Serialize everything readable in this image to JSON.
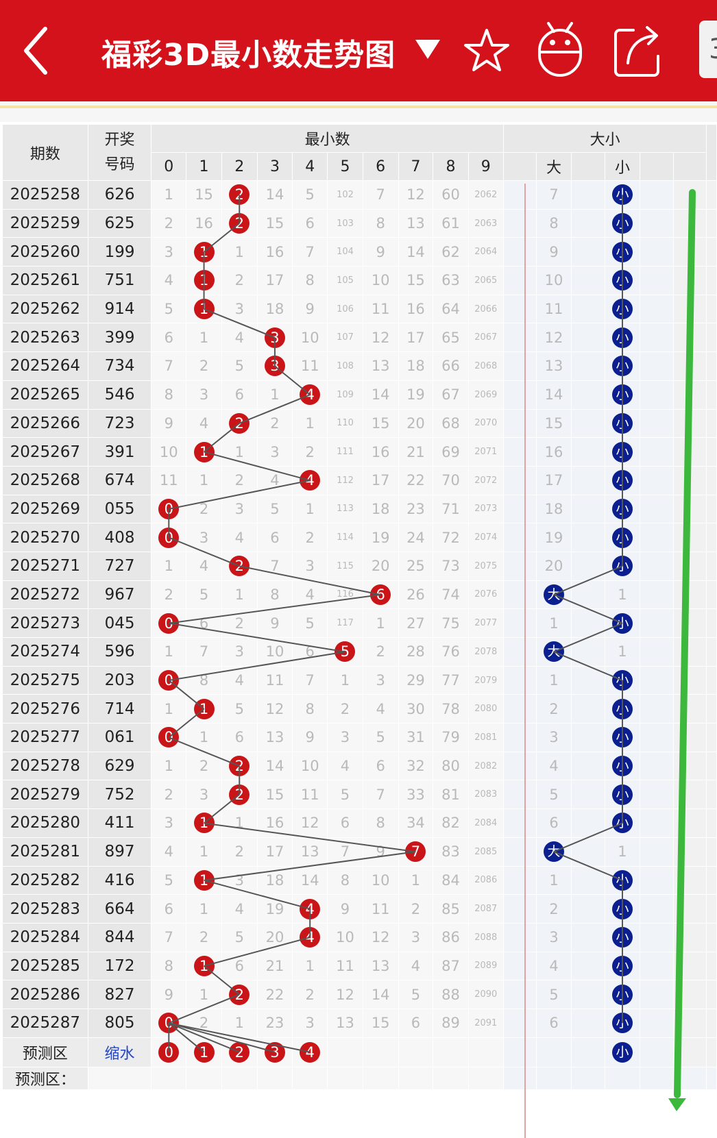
{
  "header": {
    "back_icon": "back-arrow-icon",
    "title": "福彩3D最小数走势图",
    "dropdown_icon": "triangle-down-icon",
    "favorite_icon": "star-icon",
    "android_icon": "android-icon",
    "share_icon": "share-icon",
    "cut_text": "3"
  },
  "colors": {
    "header_bg": "#d3121b",
    "red_ball": "#c91418",
    "blue_ball": "#0b1f8f",
    "trend_arrow": "#3cb83c",
    "connector": "#555555"
  },
  "table": {
    "headers": {
      "period": "期数",
      "number_line1": "开奖",
      "number_line2": "号码",
      "min_group": "最小数",
      "digits": [
        "0",
        "1",
        "2",
        "3",
        "4",
        "5",
        "6",
        "7",
        "8",
        "9"
      ],
      "bs_group": "大小",
      "big": "大",
      "small": "小"
    },
    "rows": [
      {
        "period": "2025258",
        "number": "626",
        "cells": [
          "1",
          "15",
          "2",
          "14",
          "5",
          "102",
          "7",
          "12",
          "60",
          "2062"
        ],
        "hit": 2,
        "bs": [
          "7",
          "小"
        ],
        "bs_hit": 1
      },
      {
        "period": "2025259",
        "number": "625",
        "cells": [
          "2",
          "16",
          "2",
          "15",
          "6",
          "103",
          "8",
          "13",
          "61",
          "2063"
        ],
        "hit": 2,
        "bs": [
          "8",
          "小"
        ],
        "bs_hit": 1
      },
      {
        "period": "2025260",
        "number": "199",
        "cells": [
          "3",
          "1",
          "1",
          "16",
          "7",
          "104",
          "9",
          "14",
          "62",
          "2064"
        ],
        "hit": 1,
        "bs": [
          "9",
          "小"
        ],
        "bs_hit": 1
      },
      {
        "period": "2025261",
        "number": "751",
        "cells": [
          "4",
          "1",
          "2",
          "17",
          "8",
          "105",
          "10",
          "15",
          "63",
          "2065"
        ],
        "hit": 1,
        "bs": [
          "10",
          "小"
        ],
        "bs_hit": 1
      },
      {
        "period": "2025262",
        "number": "914",
        "cells": [
          "5",
          "1",
          "3",
          "18",
          "9",
          "106",
          "11",
          "16",
          "64",
          "2066"
        ],
        "hit": 1,
        "bs": [
          "11",
          "小"
        ],
        "bs_hit": 1
      },
      {
        "period": "2025263",
        "number": "399",
        "cells": [
          "6",
          "1",
          "4",
          "3",
          "10",
          "107",
          "12",
          "17",
          "65",
          "2067"
        ],
        "hit": 3,
        "bs": [
          "12",
          "小"
        ],
        "bs_hit": 1
      },
      {
        "period": "2025264",
        "number": "734",
        "cells": [
          "7",
          "2",
          "5",
          "3",
          "11",
          "108",
          "13",
          "18",
          "66",
          "2068"
        ],
        "hit": 3,
        "bs": [
          "13",
          "小"
        ],
        "bs_hit": 1
      },
      {
        "period": "2025265",
        "number": "546",
        "cells": [
          "8",
          "3",
          "6",
          "1",
          "4",
          "109",
          "14",
          "19",
          "67",
          "2069"
        ],
        "hit": 4,
        "bs": [
          "14",
          "小"
        ],
        "bs_hit": 1
      },
      {
        "period": "2025266",
        "number": "723",
        "cells": [
          "9",
          "4",
          "2",
          "2",
          "1",
          "110",
          "15",
          "20",
          "68",
          "2070"
        ],
        "hit": 2,
        "bs": [
          "15",
          "小"
        ],
        "bs_hit": 1
      },
      {
        "period": "2025267",
        "number": "391",
        "cells": [
          "10",
          "1",
          "1",
          "3",
          "2",
          "111",
          "16",
          "21",
          "69",
          "2071"
        ],
        "hit": 1,
        "bs": [
          "16",
          "小"
        ],
        "bs_hit": 1
      },
      {
        "period": "2025268",
        "number": "674",
        "cells": [
          "11",
          "1",
          "2",
          "4",
          "4",
          "112",
          "17",
          "22",
          "70",
          "2072"
        ],
        "hit": 4,
        "bs": [
          "17",
          "小"
        ],
        "bs_hit": 1
      },
      {
        "period": "2025269",
        "number": "055",
        "cells": [
          "0",
          "2",
          "3",
          "5",
          "1",
          "113",
          "18",
          "23",
          "71",
          "2073"
        ],
        "hit": 0,
        "bs": [
          "18",
          "小"
        ],
        "bs_hit": 1
      },
      {
        "period": "2025270",
        "number": "408",
        "cells": [
          "0",
          "3",
          "4",
          "6",
          "2",
          "114",
          "19",
          "24",
          "72",
          "2074"
        ],
        "hit": 0,
        "bs": [
          "19",
          "小"
        ],
        "bs_hit": 1
      },
      {
        "period": "2025271",
        "number": "727",
        "cells": [
          "1",
          "4",
          "2",
          "7",
          "3",
          "115",
          "20",
          "25",
          "73",
          "2075"
        ],
        "hit": 2,
        "bs": [
          "20",
          "小"
        ],
        "bs_hit": 1
      },
      {
        "period": "2025272",
        "number": "967",
        "cells": [
          "2",
          "5",
          "1",
          "8",
          "4",
          "116",
          "6",
          "26",
          "74",
          "2076"
        ],
        "hit": 6,
        "bs": [
          "大",
          "1"
        ],
        "bs_hit": 0
      },
      {
        "period": "2025273",
        "number": "045",
        "cells": [
          "0",
          "6",
          "2",
          "9",
          "5",
          "117",
          "1",
          "27",
          "75",
          "2077"
        ],
        "hit": 0,
        "bs": [
          "1",
          "小"
        ],
        "bs_hit": 1
      },
      {
        "period": "2025274",
        "number": "596",
        "cells": [
          "1",
          "7",
          "3",
          "10",
          "6",
          "5",
          "2",
          "28",
          "76",
          "2078"
        ],
        "hit": 5,
        "bs": [
          "大",
          "1"
        ],
        "bs_hit": 0
      },
      {
        "period": "2025275",
        "number": "203",
        "cells": [
          "0",
          "8",
          "4",
          "11",
          "7",
          "1",
          "3",
          "29",
          "77",
          "2079"
        ],
        "hit": 0,
        "bs": [
          "1",
          "小"
        ],
        "bs_hit": 1
      },
      {
        "period": "2025276",
        "number": "714",
        "cells": [
          "1",
          "1",
          "5",
          "12",
          "8",
          "2",
          "4",
          "30",
          "78",
          "2080"
        ],
        "hit": 1,
        "bs": [
          "2",
          "小"
        ],
        "bs_hit": 1
      },
      {
        "period": "2025277",
        "number": "061",
        "cells": [
          "0",
          "1",
          "6",
          "13",
          "9",
          "3",
          "5",
          "31",
          "79",
          "2081"
        ],
        "hit": 0,
        "bs": [
          "3",
          "小"
        ],
        "bs_hit": 1
      },
      {
        "period": "2025278",
        "number": "629",
        "cells": [
          "1",
          "2",
          "2",
          "14",
          "10",
          "4",
          "6",
          "32",
          "80",
          "2082"
        ],
        "hit": 2,
        "bs": [
          "4",
          "小"
        ],
        "bs_hit": 1
      },
      {
        "period": "2025279",
        "number": "752",
        "cells": [
          "2",
          "3",
          "2",
          "15",
          "11",
          "5",
          "7",
          "33",
          "81",
          "2083"
        ],
        "hit": 2,
        "bs": [
          "5",
          "小"
        ],
        "bs_hit": 1
      },
      {
        "period": "2025280",
        "number": "411",
        "cells": [
          "3",
          "1",
          "1",
          "16",
          "12",
          "6",
          "8",
          "34",
          "82",
          "2084"
        ],
        "hit": 1,
        "bs": [
          "6",
          "小"
        ],
        "bs_hit": 1
      },
      {
        "period": "2025281",
        "number": "897",
        "cells": [
          "4",
          "1",
          "2",
          "17",
          "13",
          "7",
          "9",
          "7",
          "83",
          "2085"
        ],
        "hit": 7,
        "bs": [
          "大",
          "1"
        ],
        "bs_hit": 0
      },
      {
        "period": "2025282",
        "number": "416",
        "cells": [
          "5",
          "1",
          "3",
          "18",
          "14",
          "8",
          "10",
          "1",
          "84",
          "2086"
        ],
        "hit": 1,
        "bs": [
          "1",
          "小"
        ],
        "bs_hit": 1
      },
      {
        "period": "2025283",
        "number": "664",
        "cells": [
          "6",
          "1",
          "4",
          "19",
          "4",
          "9",
          "11",
          "2",
          "85",
          "2087"
        ],
        "hit": 4,
        "bs": [
          "2",
          "小"
        ],
        "bs_hit": 1
      },
      {
        "period": "2025284",
        "number": "844",
        "cells": [
          "7",
          "2",
          "5",
          "20",
          "4",
          "10",
          "12",
          "3",
          "86",
          "2088"
        ],
        "hit": 4,
        "bs": [
          "3",
          "小"
        ],
        "bs_hit": 1
      },
      {
        "period": "2025285",
        "number": "172",
        "cells": [
          "8",
          "1",
          "6",
          "21",
          "1",
          "11",
          "13",
          "4",
          "87",
          "2089"
        ],
        "hit": 1,
        "bs": [
          "4",
          "小"
        ],
        "bs_hit": 1
      },
      {
        "period": "2025286",
        "number": "827",
        "cells": [
          "9",
          "1",
          "2",
          "22",
          "2",
          "12",
          "14",
          "5",
          "88",
          "2090"
        ],
        "hit": 2,
        "bs": [
          "5",
          "小"
        ],
        "bs_hit": 1
      },
      {
        "period": "2025287",
        "number": "805",
        "cells": [
          "0",
          "2",
          "1",
          "23",
          "3",
          "13",
          "15",
          "6",
          "89",
          "2091"
        ],
        "hit": 0,
        "bs": [
          "6",
          "小"
        ],
        "bs_hit": 1
      }
    ],
    "predict": {
      "label": "预测区",
      "link": "缩水",
      "balls": [
        "0",
        "1",
        "2",
        "3",
        "4"
      ],
      "bs_ball": "小"
    },
    "next_row_label": "预测区："
  }
}
